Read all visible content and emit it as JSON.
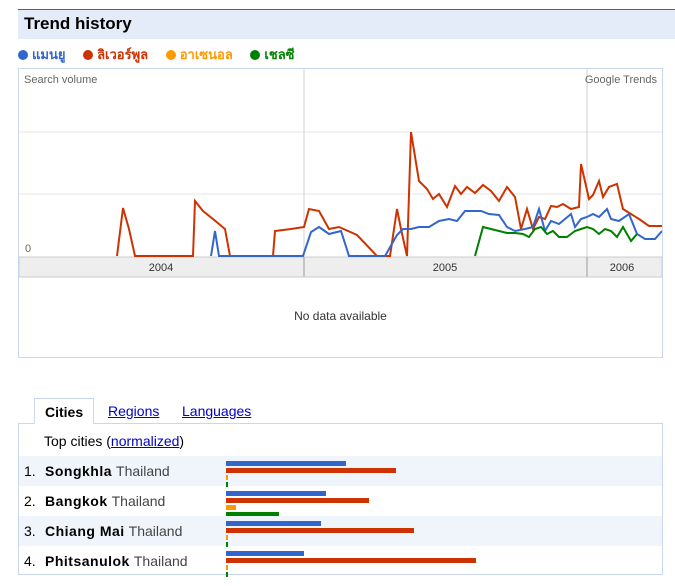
{
  "header": {
    "title": "Trend history"
  },
  "legend": [
    {
      "label": "แมนยู",
      "color": "#3366cc"
    },
    {
      "label": "ลิเวอร์พูล",
      "color": "#cc3300"
    },
    {
      "label": "อาเซนอล",
      "color": "#ff9900"
    },
    {
      "label": "เชลซี",
      "color": "#008000"
    }
  ],
  "chart": {
    "y_axis_label": "Search volume",
    "source_label": "Google Trends",
    "zero_label": "0",
    "years": [
      "2004",
      "2005",
      "2006"
    ],
    "no_data_text": "No data available"
  },
  "chart_data": {
    "type": "line",
    "ylabel": "Search volume",
    "x_labels": [
      "2004",
      "2005",
      "2006"
    ],
    "series": [
      {
        "name": "แมนยู",
        "color": "#3366cc"
      },
      {
        "name": "ลิเวอร์พูล",
        "color": "#cc3300"
      },
      {
        "name": "อาเซนอล",
        "color": "#ff9900"
      },
      {
        "name": "เชลซี",
        "color": "#008000"
      }
    ]
  },
  "tabs": {
    "cities": "Cities",
    "regions": "Regions",
    "languages": "Languages"
  },
  "cities": {
    "heading_prefix": "Top cities (",
    "heading_link": "normalized",
    "heading_suffix": ")",
    "rows": [
      {
        "rank": "1.",
        "city": "Songkhla",
        "country": "Thailand",
        "values": [
          0.48,
          0.68,
          0.0,
          0.0
        ]
      },
      {
        "rank": "2.",
        "city": "Bangkok",
        "country": "Thailand",
        "values": [
          0.4,
          0.57,
          0.04,
          0.21
        ]
      },
      {
        "rank": "3.",
        "city": "Chiang Mai",
        "country": "Thailand",
        "values": [
          0.38,
          0.75,
          0.0,
          0.0
        ]
      },
      {
        "rank": "4.",
        "city": "Phitsanulok",
        "country": "Thailand",
        "values": [
          0.31,
          1.0,
          0.0,
          0.0
        ]
      }
    ]
  }
}
